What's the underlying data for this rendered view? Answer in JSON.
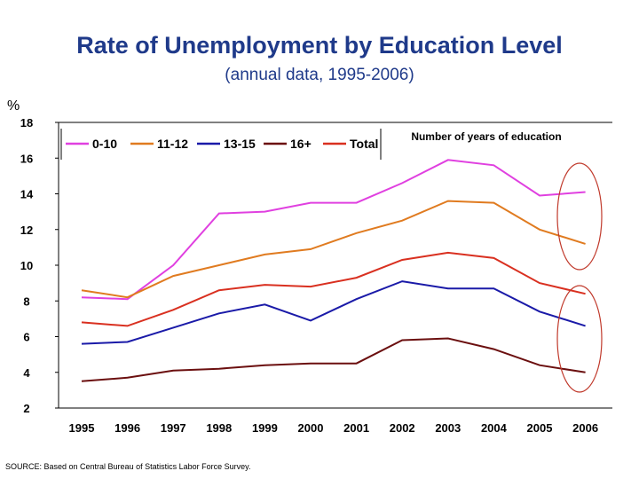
{
  "title": "Rate of Unemployment by Education Level",
  "subtitle": "(annual data, 1995-2006)",
  "unit": "%",
  "source": "SOURCE: Based on Central Bureau of Statistics Labor Force Survey.",
  "colors": {
    "0-10": "#e040e0",
    "11-12": "#e07b20",
    "13-15": "#1a1aa8",
    "16+": "#6b0f0f",
    "Total": "#d93020",
    "highlight_ellipse": "#c0392b"
  },
  "chart_data": {
    "type": "line",
    "x": [
      "1995",
      "1996",
      "1997",
      "1998",
      "1999",
      "2000",
      "2001",
      "2002",
      "2003",
      "2004",
      "2005",
      "2006"
    ],
    "ylim": [
      2,
      18
    ],
    "yticks": [
      2,
      4,
      6,
      8,
      10,
      12,
      14,
      16,
      18
    ],
    "grid": false,
    "legend_title": "Number of years of education",
    "legend_position": "top",
    "series": [
      {
        "name": "0-10",
        "values": [
          8.2,
          8.1,
          10.0,
          12.9,
          13.0,
          13.5,
          13.5,
          14.6,
          15.9,
          15.6,
          13.9,
          14.1
        ]
      },
      {
        "name": "11-12",
        "values": [
          8.6,
          8.2,
          9.4,
          10.0,
          10.6,
          10.9,
          11.8,
          12.5,
          13.6,
          13.5,
          12.0,
          11.2
        ]
      },
      {
        "name": "13-15",
        "values": [
          5.6,
          5.7,
          6.5,
          7.3,
          7.8,
          6.9,
          8.1,
          9.1,
          8.7,
          8.7,
          7.4,
          6.6
        ]
      },
      {
        "name": "16+",
        "values": [
          3.5,
          3.7,
          4.1,
          4.2,
          4.4,
          4.5,
          4.5,
          5.8,
          5.9,
          5.3,
          4.4,
          4.0
        ]
      },
      {
        "name": "Total",
        "values": [
          6.8,
          6.6,
          7.5,
          8.6,
          8.9,
          8.8,
          9.3,
          10.3,
          10.7,
          10.4,
          9.0,
          8.4
        ]
      }
    ]
  }
}
